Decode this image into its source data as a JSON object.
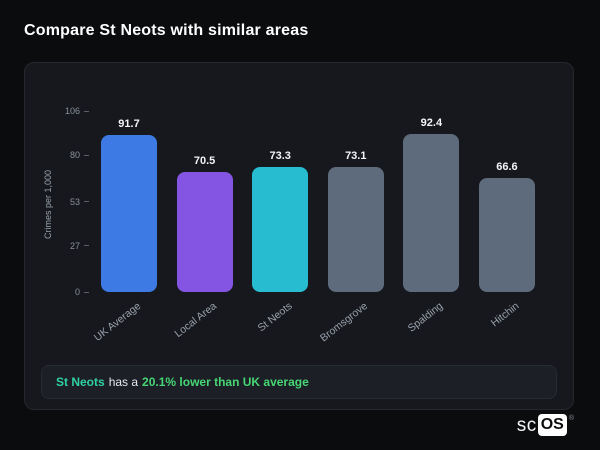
{
  "page": {
    "title": "Compare St Neots with similar areas"
  },
  "chart_data": {
    "type": "bar",
    "categories": [
      "UK Average",
      "Local Area",
      "St Neots",
      "Bromsgrove",
      "Spalding",
      "Hitchin"
    ],
    "values": [
      91.7,
      70.5,
      73.3,
      73.1,
      92.4,
      66.6
    ],
    "bar_colors": [
      "#3d7ae4",
      "#8355e2",
      "#28bcd1",
      "#5d6b7d",
      "#5d6b7d",
      "#5d6b7d"
    ],
    "value_labels": [
      "91.7",
      "70.5",
      "73.3",
      "73.1",
      "92.4",
      "66.6"
    ],
    "title": "",
    "xlabel": "",
    "ylabel": "Crimes per 1,000",
    "yticks": [
      0,
      27,
      53,
      80,
      106
    ],
    "ylim": [
      0,
      106
    ],
    "grid": false,
    "legend": false
  },
  "note": {
    "highlight": "St Neots",
    "middle": "has a",
    "stat": "20.1% lower than UK average"
  },
  "logo": {
    "prefix": "sc",
    "suffix": "OS",
    "registered": "®"
  },
  "colors": {
    "background": "#0b0c0e",
    "card_background": "#16181d",
    "note_background": "#1c1f25",
    "highlight_teal": "#2fd0a6",
    "highlight_green": "#46d675",
    "text_primary": "#ffffff",
    "text_muted": "#98a0ab"
  }
}
